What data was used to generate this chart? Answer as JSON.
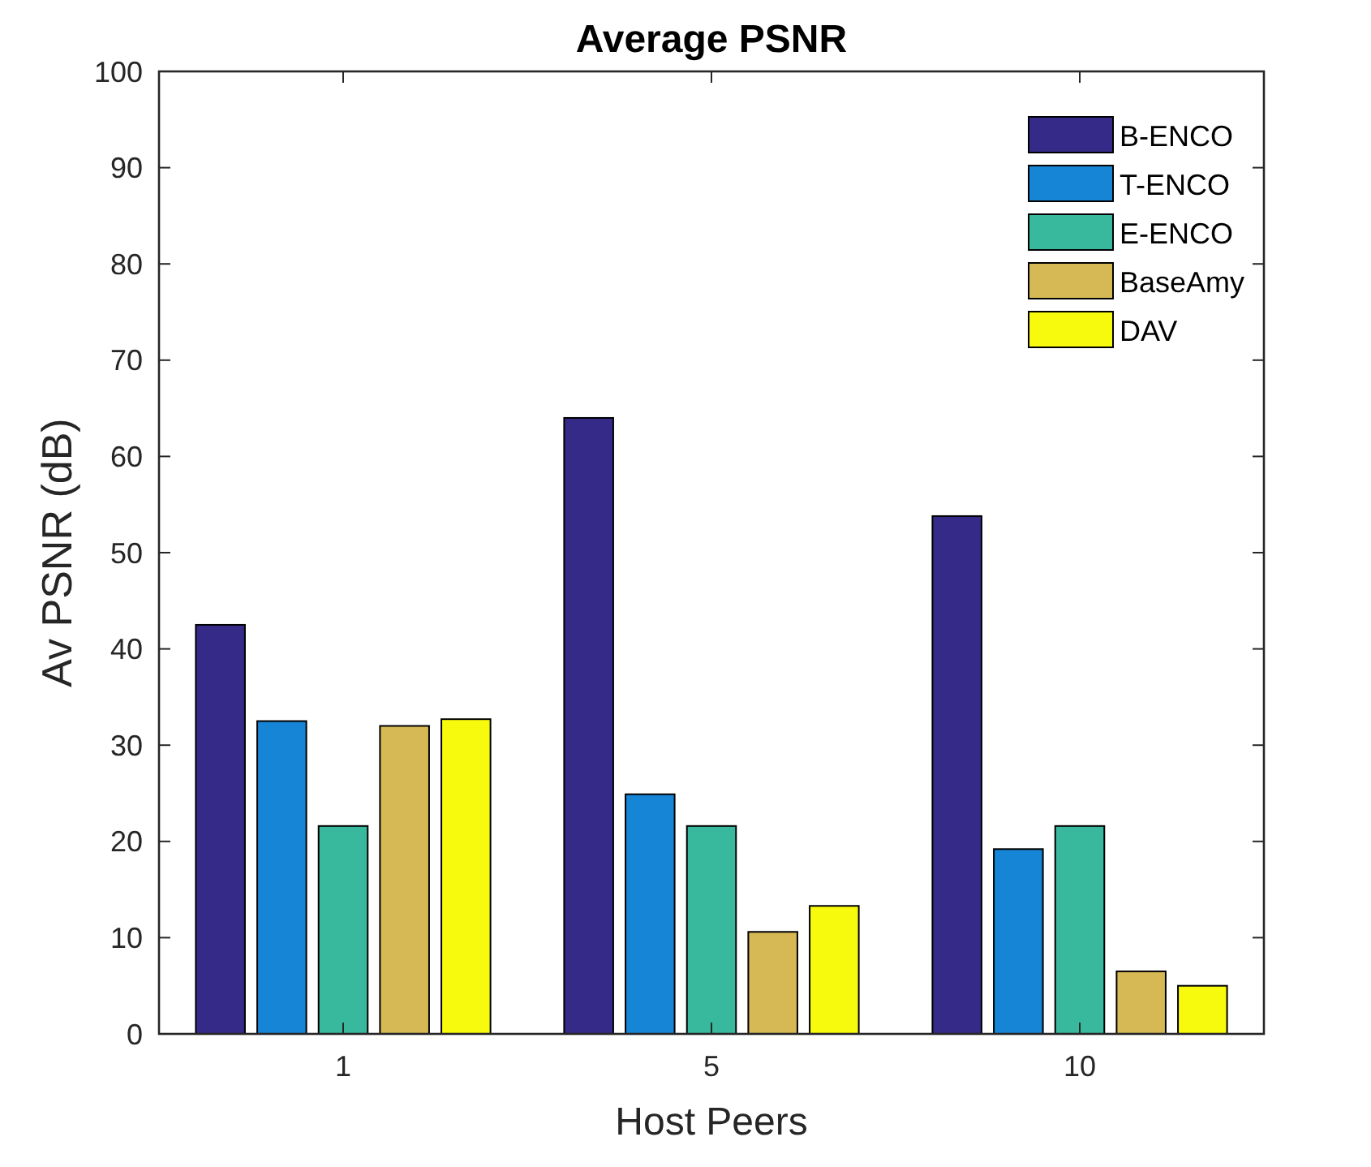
{
  "chart_data": {
    "type": "bar",
    "title": "Average PSNR",
    "xlabel": "Host Peers",
    "ylabel": "Av PSNR (dB)",
    "categories": [
      "1",
      "5",
      "10"
    ],
    "series": [
      {
        "name": "B-ENCO",
        "color": "#352a87",
        "values": [
          42.5,
          64,
          53.8
        ]
      },
      {
        "name": "T-ENCO",
        "color": "#1685d6",
        "values": [
          32.5,
          24.9,
          19.2
        ]
      },
      {
        "name": "E-ENCO",
        "color": "#38b99e",
        "values": [
          21.6,
          21.6,
          21.6
        ]
      },
      {
        "name": "BaseAmy",
        "color": "#d6b955",
        "values": [
          32,
          10.6,
          6.5
        ]
      },
      {
        "name": "DAV",
        "color": "#f8fa0d",
        "values": [
          32.7,
          13.3,
          5
        ]
      }
    ],
    "ylim": [
      0,
      100
    ],
    "yticks": [
      0,
      10,
      20,
      30,
      40,
      50,
      60,
      70,
      80,
      90,
      100
    ],
    "legend": "top right"
  }
}
